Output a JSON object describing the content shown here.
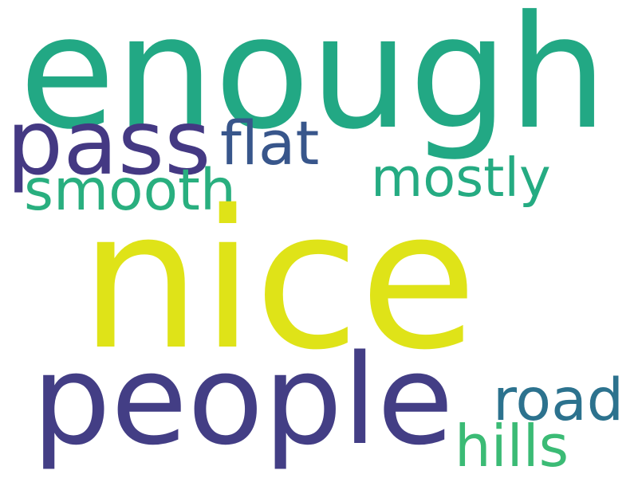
{
  "words": [
    {
      "id": "enough",
      "text": "enough",
      "color": "#22a884"
    },
    {
      "id": "nice",
      "text": "nice",
      "color": "#dfe318"
    },
    {
      "id": "people",
      "text": "people",
      "color": "#433e85"
    },
    {
      "id": "pass",
      "text": "pass",
      "color": "#443983"
    },
    {
      "id": "flat",
      "text": "flat",
      "color": "#38568b"
    },
    {
      "id": "smooth",
      "text": "smooth",
      "color": "#29af7f"
    },
    {
      "id": "mostly",
      "text": "mostly",
      "color": "#25ab82"
    },
    {
      "id": "road",
      "text": "road",
      "color": "#2c728e"
    },
    {
      "id": "hills",
      "text": "hills",
      "color": "#3bbb75"
    }
  ]
}
